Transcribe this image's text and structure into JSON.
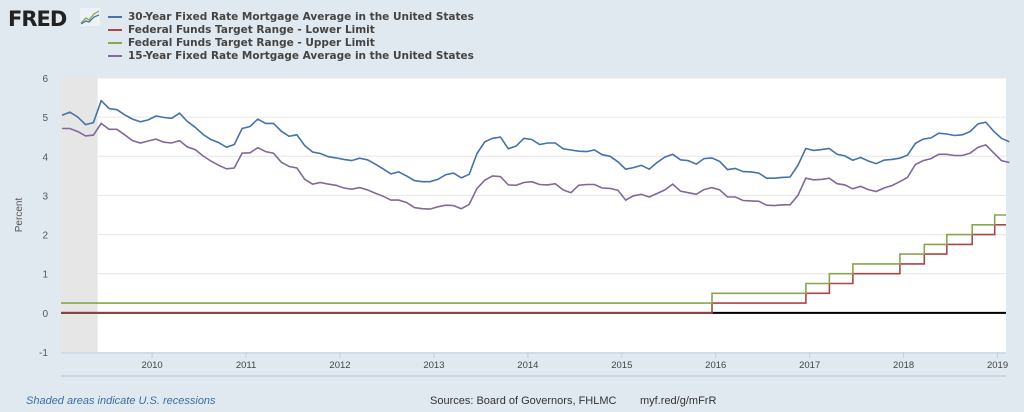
{
  "brand": "FRED",
  "colors": {
    "s30": "#4572a7",
    "lower": "#aa4643",
    "upper": "#89a54e",
    "s15": "#80699b",
    "recession": "#e6e6e6",
    "grid": "#e6e6e6"
  },
  "footer": {
    "recession_note": "Shaded areas indicate U.S. recessions",
    "sources": "Sources: Board of Governors, FHLMC",
    "short_url": "myf.red/g/mFrR"
  },
  "chart_data": {
    "type": "line",
    "ylabel": "Percent",
    "ylim": [
      -1,
      6
    ],
    "yticks": [
      "6",
      "5",
      "4",
      "3",
      "2",
      "1",
      "0",
      "-1"
    ],
    "xticks": [
      "2010",
      "2011",
      "2012",
      "2013",
      "2014",
      "2015",
      "2016",
      "2017",
      "2018",
      "2019"
    ],
    "xrange": [
      2009.03,
      2019.09
    ],
    "recessions": [
      [
        2009.03,
        2009.42
      ]
    ],
    "series": [
      {
        "name": "30-Year Fixed Rate Mortgage Average in the United States",
        "color_key": "s30",
        "start": "2009-01",
        "freq": "monthly",
        "values": [
          5.05,
          5.13,
          5.0,
          4.81,
          4.86,
          5.42,
          5.22,
          5.19,
          5.06,
          4.95,
          4.88,
          4.93,
          5.03,
          4.99,
          4.97,
          5.1,
          4.89,
          4.74,
          4.56,
          4.43,
          4.35,
          4.23,
          4.3,
          4.71,
          4.76,
          4.95,
          4.84,
          4.84,
          4.64,
          4.51,
          4.55,
          4.27,
          4.11,
          4.07,
          3.99,
          3.96,
          3.92,
          3.89,
          3.95,
          3.91,
          3.8,
          3.68,
          3.55,
          3.6,
          3.5,
          3.38,
          3.35,
          3.35,
          3.41,
          3.53,
          3.57,
          3.45,
          3.54,
          4.07,
          4.37,
          4.46,
          4.49,
          4.19,
          4.26,
          4.46,
          4.43,
          4.3,
          4.34,
          4.34,
          4.19,
          4.16,
          4.13,
          4.12,
          4.16,
          4.04,
          4.0,
          3.86,
          3.67,
          3.71,
          3.77,
          3.67,
          3.84,
          3.98,
          4.05,
          3.91,
          3.89,
          3.8,
          3.94,
          3.96,
          3.87,
          3.66,
          3.69,
          3.61,
          3.6,
          3.57,
          3.44,
          3.44,
          3.46,
          3.47,
          3.77,
          4.2,
          4.15,
          4.17,
          4.2,
          4.05,
          4.01,
          3.9,
          3.97,
          3.88,
          3.81,
          3.9,
          3.92,
          3.95,
          4.03,
          4.33,
          4.44,
          4.47,
          4.59,
          4.57,
          4.53,
          4.55,
          4.63,
          4.83,
          4.87,
          4.64,
          4.46,
          4.37
        ]
      },
      {
        "name": "Federal Funds Target Range - Lower Limit",
        "color_key": "lower",
        "type": "step",
        "points": [
          [
            2009.03,
            0
          ],
          [
            2015.96,
            0
          ],
          [
            2015.96,
            0.25
          ],
          [
            2016.96,
            0.25
          ],
          [
            2016.96,
            0.5
          ],
          [
            2017.21,
            0.5
          ],
          [
            2017.21,
            0.75
          ],
          [
            2017.46,
            0.75
          ],
          [
            2017.46,
            1.0
          ],
          [
            2017.96,
            1.0
          ],
          [
            2017.96,
            1.25
          ],
          [
            2018.22,
            1.25
          ],
          [
            2018.22,
            1.5
          ],
          [
            2018.46,
            1.5
          ],
          [
            2018.46,
            1.75
          ],
          [
            2018.73,
            1.75
          ],
          [
            2018.73,
            2.0
          ],
          [
            2018.97,
            2.0
          ],
          [
            2018.97,
            2.25
          ],
          [
            2019.09,
            2.25
          ]
        ]
      },
      {
        "name": "Federal Funds Target Range - Upper Limit",
        "color_key": "upper",
        "type": "step",
        "points": [
          [
            2009.03,
            0.25
          ],
          [
            2015.96,
            0.25
          ],
          [
            2015.96,
            0.5
          ],
          [
            2016.96,
            0.5
          ],
          [
            2016.96,
            0.75
          ],
          [
            2017.21,
            0.75
          ],
          [
            2017.21,
            1.0
          ],
          [
            2017.46,
            1.0
          ],
          [
            2017.46,
            1.25
          ],
          [
            2017.96,
            1.25
          ],
          [
            2017.96,
            1.5
          ],
          [
            2018.22,
            1.5
          ],
          [
            2018.22,
            1.75
          ],
          [
            2018.46,
            1.75
          ],
          [
            2018.46,
            2.0
          ],
          [
            2018.73,
            2.0
          ],
          [
            2018.73,
            2.25
          ],
          [
            2018.97,
            2.25
          ],
          [
            2018.97,
            2.5
          ],
          [
            2019.09,
            2.5
          ]
        ]
      },
      {
        "name": "15-Year Fixed Rate Mortgage Average in the United States",
        "color_key": "s15",
        "start": "2009-01",
        "freq": "monthly",
        "values": [
          4.71,
          4.71,
          4.63,
          4.52,
          4.54,
          4.84,
          4.69,
          4.69,
          4.55,
          4.4,
          4.34,
          4.39,
          4.44,
          4.36,
          4.34,
          4.4,
          4.24,
          4.17,
          4.01,
          3.88,
          3.77,
          3.68,
          3.7,
          4.08,
          4.09,
          4.22,
          4.12,
          4.08,
          3.85,
          3.74,
          3.7,
          3.41,
          3.29,
          3.33,
          3.29,
          3.26,
          3.19,
          3.16,
          3.2,
          3.14,
          3.06,
          2.98,
          2.88,
          2.88,
          2.82,
          2.69,
          2.66,
          2.65,
          2.71,
          2.75,
          2.74,
          2.66,
          2.77,
          3.18,
          3.39,
          3.5,
          3.48,
          3.27,
          3.26,
          3.33,
          3.35,
          3.28,
          3.27,
          3.3,
          3.14,
          3.07,
          3.26,
          3.28,
          3.28,
          3.19,
          3.18,
          3.13,
          2.88,
          2.99,
          3.03,
          2.96,
          3.05,
          3.14,
          3.29,
          3.11,
          3.07,
          3.03,
          3.15,
          3.2,
          3.14,
          2.96,
          2.96,
          2.87,
          2.86,
          2.85,
          2.75,
          2.74,
          2.76,
          2.76,
          3.0,
          3.44,
          3.4,
          3.41,
          3.44,
          3.3,
          3.27,
          3.17,
          3.23,
          3.15,
          3.1,
          3.19,
          3.25,
          3.35,
          3.46,
          3.79,
          3.89,
          3.94,
          4.05,
          4.05,
          4.02,
          4.02,
          4.08,
          4.23,
          4.29,
          4.09,
          3.89,
          3.84
        ]
      }
    ]
  }
}
